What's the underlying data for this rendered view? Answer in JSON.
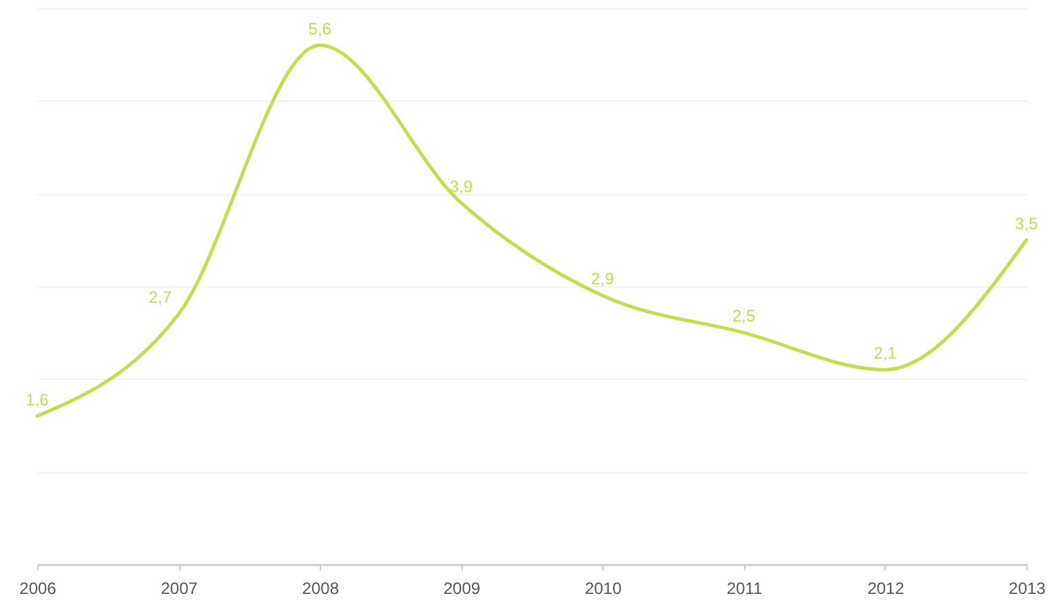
{
  "chart_data": {
    "type": "line",
    "categories": [
      "2006",
      "2007",
      "2008",
      "2009",
      "2010",
      "2011",
      "2012",
      "2013"
    ],
    "values": [
      1.6,
      2.7,
      5.6,
      3.9,
      2.9,
      2.5,
      2.1,
      3.5
    ],
    "value_labels": [
      "1,6",
      "2,7",
      "5,6",
      "3,9",
      "2,9",
      "2,5",
      "2,1",
      "3,5"
    ],
    "color": "#c5dc52",
    "ylim": [
      0,
      6
    ],
    "yticks": [
      {
        "value": 0,
        "label": null
      },
      {
        "value": 1,
        "label": null
      },
      {
        "value": 2,
        "label": null
      },
      {
        "value": 3,
        "label": null
      },
      {
        "value": 4,
        "label": null
      },
      {
        "value": 5,
        "label": null
      },
      {
        "value": 6,
        "label": null
      }
    ],
    "grid": "y",
    "tick_labels": "x"
  }
}
